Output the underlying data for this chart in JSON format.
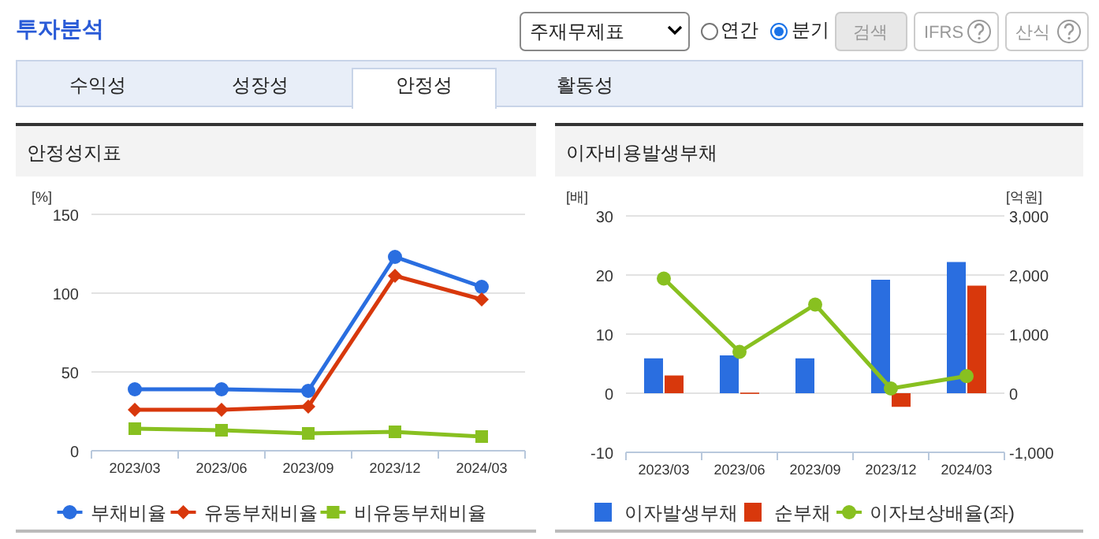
{
  "chart_data": [
    {
      "type": "line",
      "title": "안정성지표",
      "ylabel": "[%]",
      "categories": [
        "2023/03",
        "2023/06",
        "2023/09",
        "2023/12",
        "2024/03"
      ],
      "ylim": [
        0,
        150
      ],
      "yticks": [
        0,
        50,
        100,
        150
      ],
      "grid": "y",
      "legend": "bottom",
      "annotations": [
        "투자분석",
        "주재무제표",
        "연간",
        "분기",
        "검색",
        "IFRS",
        "산식",
        "수익성",
        "성장성",
        "안정성",
        "활동성"
      ],
      "series": [
        {
          "name": "부채비율",
          "color": "#2a6ee0",
          "marker": "circle",
          "values": [
            39,
            39,
            38,
            123,
            104
          ]
        },
        {
          "name": "유동부채비율",
          "color": "#d8380c",
          "marker": "diamond",
          "values": [
            26,
            26,
            28,
            111,
            96
          ]
        },
        {
          "name": "비유동부채비율",
          "color": "#88c020",
          "marker": "square",
          "values": [
            14,
            13,
            11,
            12,
            9
          ]
        }
      ]
    },
    {
      "type": "bar",
      "title": "이자비용발생부채",
      "ylabel": "[배]",
      "y2label": "[억원]",
      "categories": [
        "2023/03",
        "2023/06",
        "2023/09",
        "2023/12",
        "2024/03"
      ],
      "ylim": [
        -10,
        30
      ],
      "yticks": [
        -10,
        0,
        10,
        20,
        30
      ],
      "y2lim": [
        -1000,
        3000
      ],
      "y2ticks": [
        {
          "value": -1000,
          "label": "-1,000"
        },
        0,
        {
          "value": 1000,
          "label": "1,000"
        },
        {
          "value": 2000,
          "label": "2,000"
        },
        {
          "value": 3000,
          "label": "3,000"
        }
      ],
      "grid": "y",
      "legend": "bottom",
      "series": [
        {
          "name": "이자발생부채",
          "axis": "y2",
          "color": "#2a6ee0",
          "values": [
            590,
            640,
            590,
            1920,
            2220
          ]
        },
        {
          "name": "순부채",
          "axis": "y2",
          "color": "#d8380c",
          "values": [
            300,
            10,
            null,
            -230,
            1820
          ]
        },
        {
          "name": "이자보상배율(좌)",
          "type": "line",
          "axis": "y",
          "color": "#88c020",
          "marker": "circle",
          "values": [
            19.4,
            7.0,
            15.0,
            0.8,
            2.9
          ]
        }
      ]
    }
  ]
}
